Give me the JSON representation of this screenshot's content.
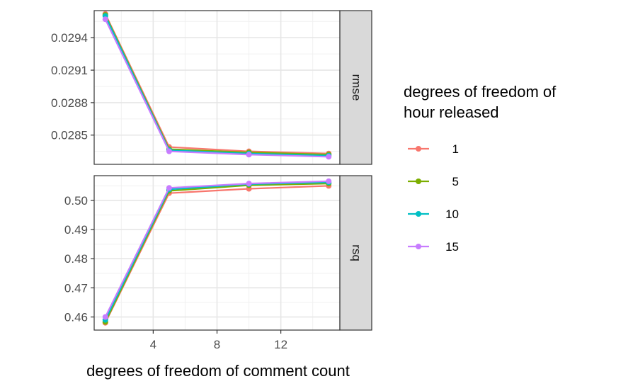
{
  "chart_data": {
    "type": "line",
    "xlabel": "degrees of freedom of comment count",
    "x": [
      1,
      5,
      10,
      15
    ],
    "x_ticks": [
      "4",
      "8",
      "12"
    ],
    "xlim": [
      0.3,
      15.7
    ],
    "legend": {
      "title_line1": "degrees of freedom of",
      "title_line2": "hour released",
      "position": "right"
    },
    "grid": true,
    "series_colors": {
      "1": "#F8766D",
      "5": "#7CAE00",
      "10": "#00BFC4",
      "15": "#C77CFF"
    },
    "panels": [
      {
        "strip": "rmse",
        "ylim": [
          0.02823,
          0.02965
        ],
        "y_ticks": [
          "0.0285",
          "0.0288",
          "0.0291",
          "0.0294"
        ],
        "series": [
          {
            "name": "1",
            "values": [
              0.02962,
              0.02839,
              0.02835,
              0.02833
            ]
          },
          {
            "name": "5",
            "values": [
              0.02961,
              0.02837,
              0.02834,
              0.02832
            ]
          },
          {
            "name": "10",
            "values": [
              0.0296,
              0.02836,
              0.02833,
              0.02831
            ]
          },
          {
            "name": "15",
            "values": [
              0.02957,
              0.02835,
              0.02832,
              0.0283
            ]
          }
        ]
      },
      {
        "strip": "rsq",
        "ylim": [
          0.4555,
          0.5085
        ],
        "y_ticks": [
          "0.46",
          "0.47",
          "0.48",
          "0.49",
          "0.50"
        ],
        "series": [
          {
            "name": "1",
            "values": [
              0.458,
              0.5025,
              0.504,
              0.505
            ]
          },
          {
            "name": "5",
            "values": [
              0.4583,
              0.5033,
              0.5052,
              0.5058
            ]
          },
          {
            "name": "10",
            "values": [
              0.459,
              0.5038,
              0.5056,
              0.5062
            ]
          },
          {
            "name": "15",
            "values": [
              0.46,
              0.5043,
              0.5058,
              0.5066
            ]
          }
        ]
      }
    ]
  }
}
